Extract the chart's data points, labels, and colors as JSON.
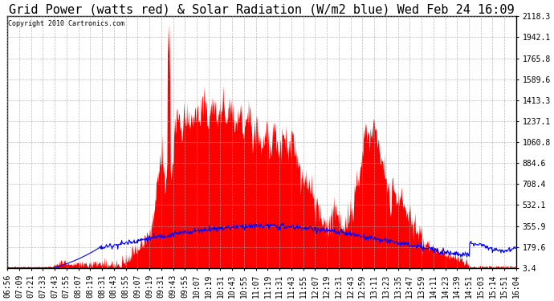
{
  "title": "Grid Power (watts red) & Solar Radiation (W/m2 blue) Wed Feb 24 16:09",
  "copyright": "Copyright 2010 Cartronics.com",
  "yticks": [
    3.4,
    179.6,
    355.9,
    532.1,
    708.4,
    884.6,
    1060.8,
    1237.1,
    1413.3,
    1589.6,
    1765.8,
    1942.1,
    2118.3
  ],
  "ymin": 3.4,
  "ymax": 2118.3,
  "xtick_labels": [
    "06:56",
    "07:09",
    "07:21",
    "07:33",
    "07:43",
    "07:55",
    "08:07",
    "08:19",
    "08:31",
    "08:43",
    "08:55",
    "09:07",
    "09:19",
    "09:31",
    "09:43",
    "09:55",
    "10:07",
    "10:19",
    "10:31",
    "10:43",
    "10:55",
    "11:07",
    "11:19",
    "11:31",
    "11:43",
    "11:55",
    "12:07",
    "12:19",
    "12:31",
    "12:43",
    "12:59",
    "13:11",
    "13:23",
    "13:35",
    "13:47",
    "13:59",
    "14:11",
    "14:23",
    "14:39",
    "14:51",
    "15:03",
    "15:14",
    "15:51",
    "16:04"
  ],
  "bg_color": "#ffffff",
  "plot_bg_color": "#ffffff",
  "grid_color": "#aaaaaa",
  "red_color": "#ff0000",
  "blue_color": "#0000ff",
  "title_fontsize": 11,
  "tick_fontsize": 7
}
